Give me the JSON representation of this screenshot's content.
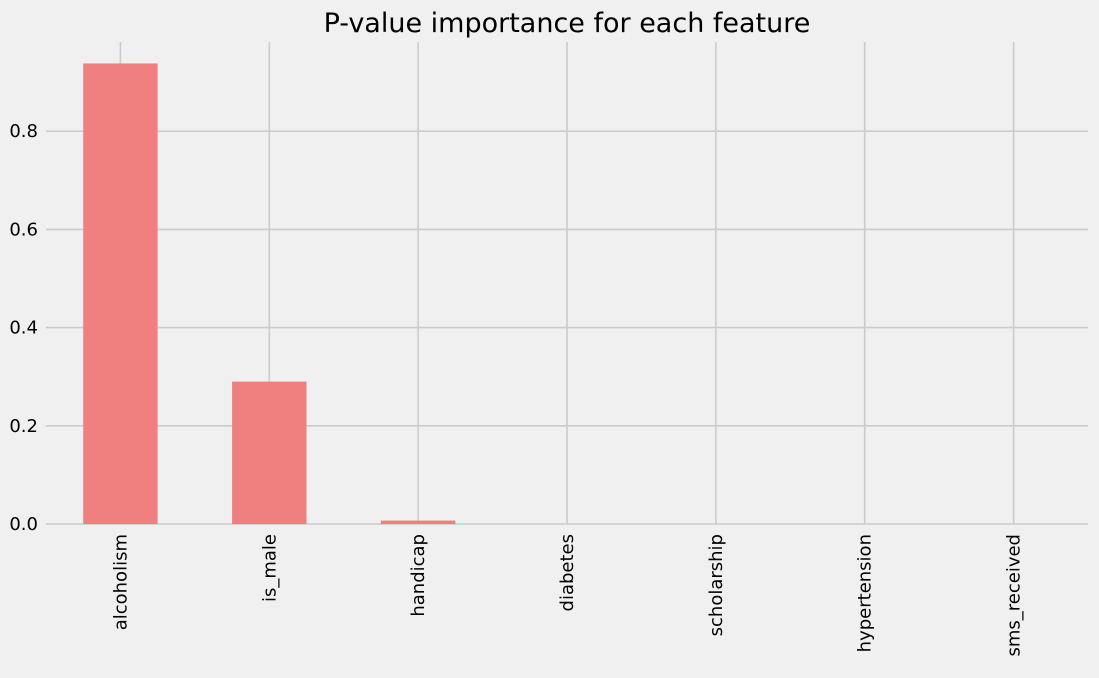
{
  "chart_data": {
    "type": "bar",
    "title": "P-value importance for each feature",
    "xlabel": "",
    "ylabel": "",
    "categories": [
      "alcoholism",
      "is_male",
      "handicap",
      "diabetes",
      "scholarship",
      "hypertension",
      "sms_received"
    ],
    "values": [
      0.938,
      0.29,
      0.007,
      0.0,
      0.0,
      0.0,
      0.0
    ],
    "ylim": [
      0,
      0.98
    ],
    "yticks": [
      0.0,
      0.2,
      0.4,
      0.6,
      0.8
    ],
    "ytick_labels": [
      "0.0",
      "0.2",
      "0.4",
      "0.6",
      "0.8"
    ],
    "grid": true,
    "colors": {
      "bar": "#f08080",
      "background": "#f0f0f0",
      "grid": "#cbcbcb"
    }
  }
}
